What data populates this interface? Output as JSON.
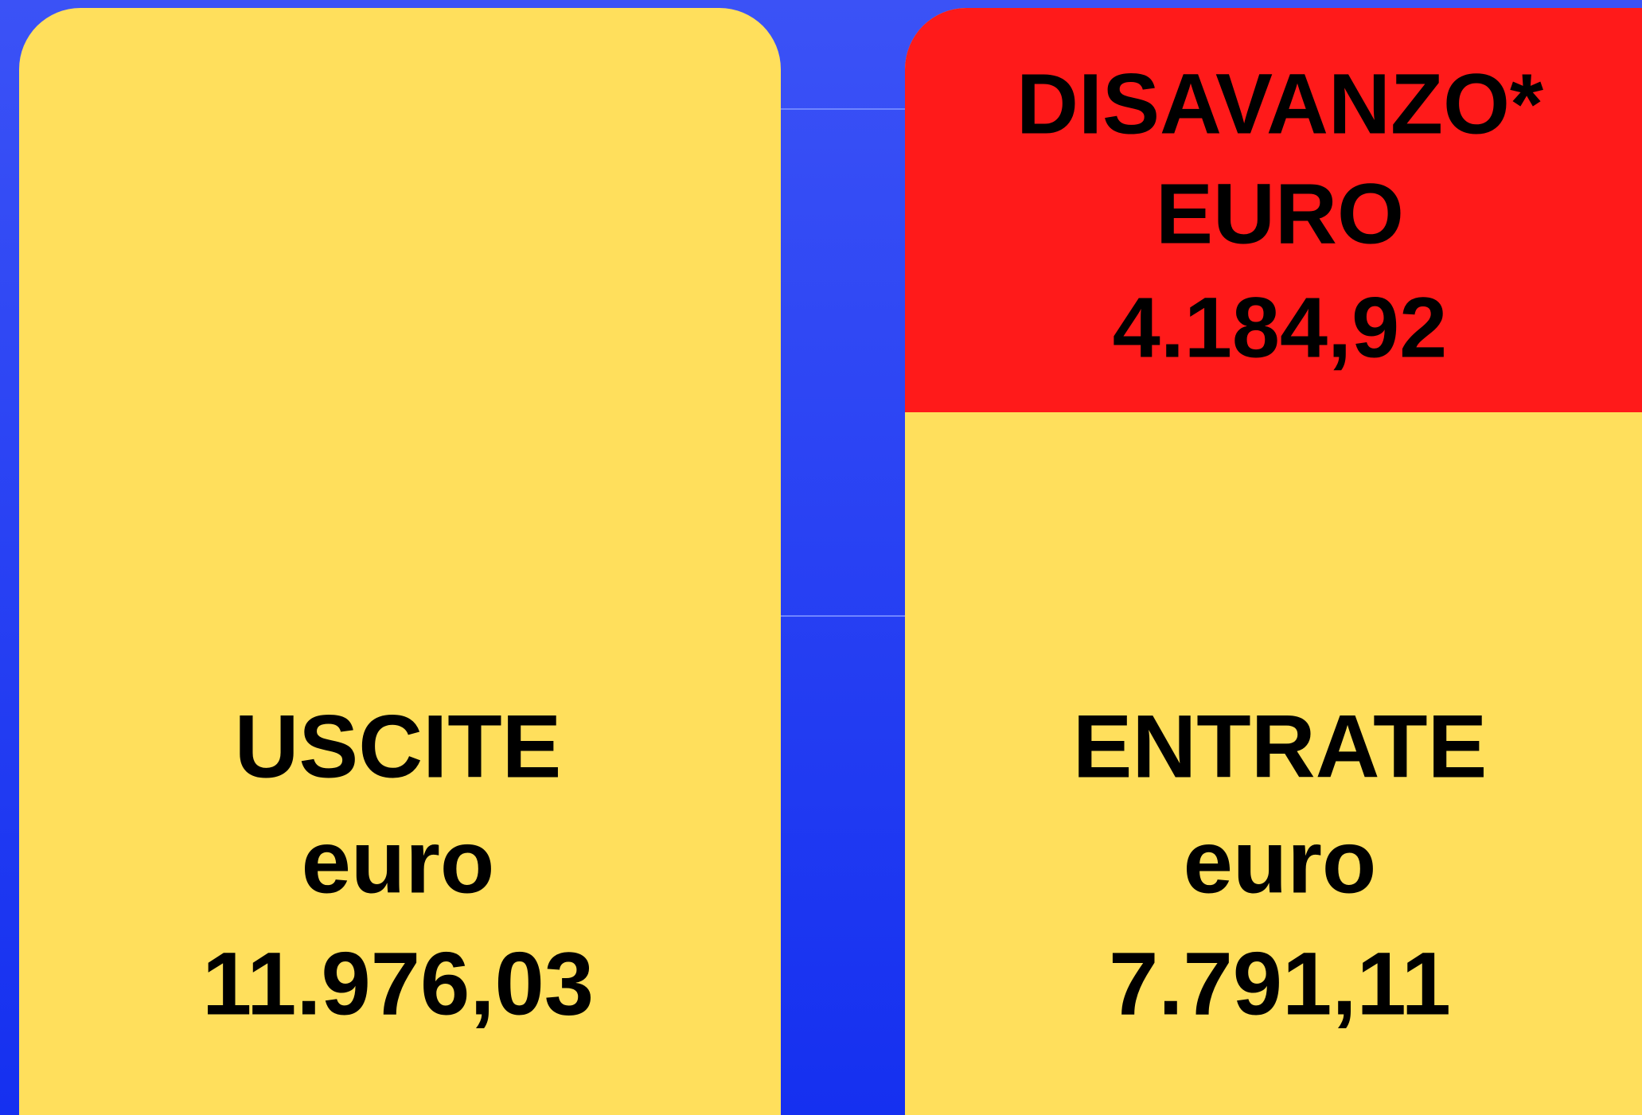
{
  "outgoing": {
    "title": "USCITE",
    "unit": "euro",
    "amount": "11.976,03"
  },
  "incoming": {
    "title": "ENTRATE",
    "unit": "euro",
    "amount": "7.791,11"
  },
  "deficit": {
    "title": "DISAVANZO*",
    "unit": "EURO",
    "amount": "4.184,92"
  }
}
